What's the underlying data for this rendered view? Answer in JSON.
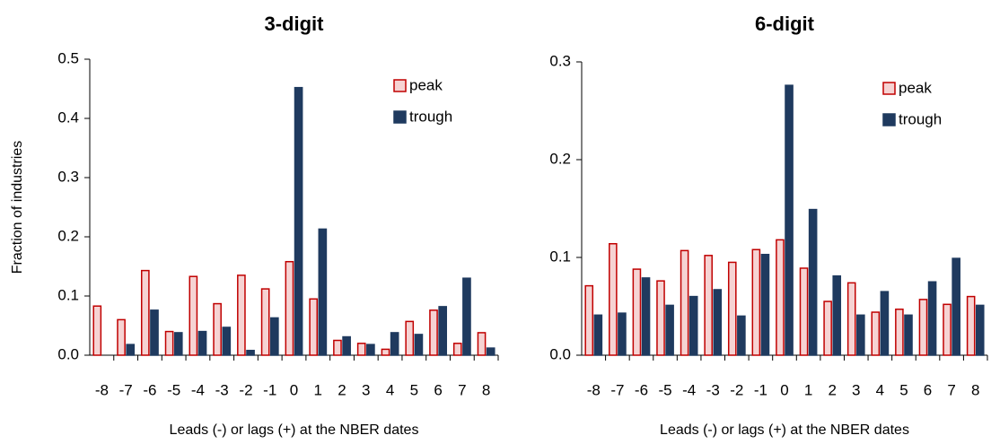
{
  "chart_data": [
    {
      "type": "bar",
      "title": "3-digit",
      "y_label": "Fraction of industries",
      "x_label": "Leads (-) or lags (+) at the NBER dates",
      "categories": [
        "-8",
        "-7",
        "-6",
        "-5",
        "-4",
        "-3",
        "-2",
        "-1",
        "0",
        "1",
        "2",
        "3",
        "4",
        "5",
        "6",
        "7",
        "8"
      ],
      "series": [
        {
          "name": "peak",
          "color": "#f6d3d3",
          "edge": "#c00000",
          "values": [
            0.083,
            0.06,
            0.143,
            0.04,
            0.133,
            0.087,
            0.135,
            0.112,
            0.158,
            0.095,
            0.025,
            0.02,
            0.01,
            0.057,
            0.076,
            0.02,
            0.038
          ]
        },
        {
          "name": "trough",
          "color": "#1f3a5f",
          "edge": "#1f3a5f",
          "values": [
            0,
            0.018,
            0.076,
            0.038,
            0.04,
            0.047,
            0.008,
            0.063,
            0.452,
            0.213,
            0.031,
            0.018,
            0.038,
            0.035,
            0.082,
            0.13,
            0.012
          ]
        }
      ],
      "ylim": [
        0,
        0.5
      ],
      "yticks": [
        {
          "value": 0,
          "label": "0.0"
        },
        0.1,
        0.2,
        0.3,
        0.4,
        0.5
      ],
      "legend": "upper right"
    },
    {
      "type": "bar",
      "title": "6-digit",
      "x_label": "Leads (-) or lags (+) at the NBER dates",
      "categories": [
        "-8",
        "-7",
        "-6",
        "-5",
        "-4",
        "-3",
        "-2",
        "-1",
        "0",
        "1",
        "2",
        "3",
        "4",
        "5",
        "6",
        "7",
        "8"
      ],
      "series": [
        {
          "name": "peak",
          "color": "#f6d3d3",
          "edge": "#c00000",
          "values": [
            0.071,
            0.114,
            0.088,
            0.076,
            0.107,
            0.102,
            0.095,
            0.108,
            0.118,
            0.089,
            0.055,
            0.074,
            0.044,
            0.047,
            0.057,
            0.052,
            0.06
          ]
        },
        {
          "name": "trough",
          "color": "#1f3a5f",
          "edge": "#1f3a5f",
          "values": [
            0.041,
            0.043,
            0.079,
            0.051,
            0.06,
            0.067,
            0.04,
            0.103,
            0.276,
            0.149,
            0.081,
            0.041,
            0.065,
            0.041,
            0.075,
            0.099,
            0.051
          ]
        }
      ],
      "ylim": [
        0,
        0.3
      ],
      "yticks": [
        {
          "value": 0,
          "label": "0.0"
        },
        0.1,
        0.2,
        0.3
      ],
      "legend": "upper right"
    }
  ]
}
